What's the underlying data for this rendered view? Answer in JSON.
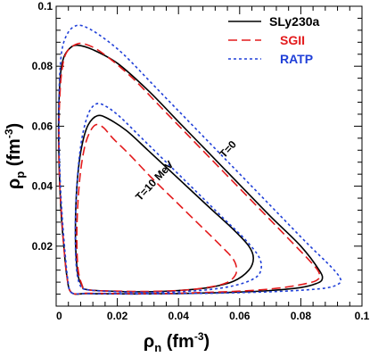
{
  "chart_data": {
    "type": "line",
    "xlabel": "ρ",
    "xlabel_sub": "n",
    "xlabel_unit": " (fm",
    "xlabel_unit_sup": "-3",
    "xlabel_unit_end": ")",
    "ylabel": "ρ",
    "ylabel_sub": "p",
    "ylabel_unit": " (fm",
    "ylabel_unit_sup": "-3",
    "ylabel_unit_end": ")",
    "xlim": [
      0,
      0.1
    ],
    "ylim": [
      0,
      0.1
    ],
    "xticks": [
      0,
      0.02,
      0.04,
      0.06,
      0.08,
      0.1
    ],
    "xtick_labels": [
      "0",
      "0.02",
      "0.04",
      "0.06",
      "0.08",
      "0.1"
    ],
    "yticks": [
      0.02,
      0.04,
      0.06,
      0.08,
      0.1
    ],
    "ytick_labels": [
      "0.02",
      "0.04",
      "0.06",
      "0.08",
      "0.1"
    ],
    "legend_position": "top-right",
    "grid": false,
    "series": [
      {
        "name": "SLy230a",
        "color": "#000000",
        "dash": "solid",
        "curve": "T=0",
        "points": [
          [
            0.005,
            0.0045
          ],
          [
            0.01,
            0.0042
          ],
          [
            0.02,
            0.0041
          ],
          [
            0.03,
            0.0041
          ],
          [
            0.04,
            0.0042
          ],
          [
            0.05,
            0.0044
          ],
          [
            0.06,
            0.0047
          ],
          [
            0.07,
            0.0052
          ],
          [
            0.08,
            0.0062
          ],
          [
            0.085,
            0.0075
          ],
          [
            0.087,
            0.009
          ],
          [
            0.086,
            0.012
          ],
          [
            0.08,
            0.02
          ],
          [
            0.07,
            0.03
          ],
          [
            0.06,
            0.0405
          ],
          [
            0.05,
            0.051
          ],
          [
            0.04,
            0.0615
          ],
          [
            0.03,
            0.072
          ],
          [
            0.02,
            0.081
          ],
          [
            0.012,
            0.0855
          ],
          [
            0.007,
            0.087
          ],
          [
            0.0045,
            0.086
          ],
          [
            0.0025,
            0.083
          ],
          [
            0.0015,
            0.078
          ],
          [
            0.001,
            0.07
          ],
          [
            0.0008,
            0.06
          ],
          [
            0.0009,
            0.05
          ],
          [
            0.0012,
            0.04
          ],
          [
            0.0017,
            0.03
          ],
          [
            0.0025,
            0.02
          ],
          [
            0.0035,
            0.01
          ],
          [
            0.005,
            0.0045
          ]
        ]
      },
      {
        "name": "SGII",
        "color": "#e31a1c",
        "dash": "long-dash",
        "curve": "T=0",
        "points": [
          [
            0.005,
            0.0045
          ],
          [
            0.01,
            0.0043
          ],
          [
            0.02,
            0.0042
          ],
          [
            0.03,
            0.0042
          ],
          [
            0.04,
            0.0043
          ],
          [
            0.05,
            0.0046
          ],
          [
            0.06,
            0.005
          ],
          [
            0.07,
            0.0057
          ],
          [
            0.078,
            0.0068
          ],
          [
            0.085,
            0.0085
          ],
          [
            0.086,
            0.011
          ],
          [
            0.083,
            0.015
          ],
          [
            0.075,
            0.0235
          ],
          [
            0.065,
            0.034
          ],
          [
            0.055,
            0.0445
          ],
          [
            0.045,
            0.055
          ],
          [
            0.035,
            0.0655
          ],
          [
            0.025,
            0.076
          ],
          [
            0.015,
            0.0845
          ],
          [
            0.009,
            0.0875
          ],
          [
            0.0055,
            0.0868
          ],
          [
            0.003,
            0.0838
          ],
          [
            0.0018,
            0.078
          ],
          [
            0.0012,
            0.07
          ],
          [
            0.0009,
            0.06
          ],
          [
            0.0009,
            0.05
          ],
          [
            0.0012,
            0.04
          ],
          [
            0.0018,
            0.03
          ],
          [
            0.0025,
            0.02
          ],
          [
            0.0035,
            0.01
          ],
          [
            0.005,
            0.0045
          ]
        ]
      },
      {
        "name": "RATP",
        "color": "#1f3fd8",
        "dash": "short-dash",
        "curve": "T=0",
        "points": [
          [
            0.005,
            0.0045
          ],
          [
            0.01,
            0.0042
          ],
          [
            0.02,
            0.0041
          ],
          [
            0.03,
            0.0041
          ],
          [
            0.04,
            0.0042
          ],
          [
            0.05,
            0.0043
          ],
          [
            0.06,
            0.0045
          ],
          [
            0.07,
            0.0048
          ],
          [
            0.08,
            0.0053
          ],
          [
            0.088,
            0.006
          ],
          [
            0.092,
            0.0072
          ],
          [
            0.093,
            0.009
          ],
          [
            0.09,
            0.013
          ],
          [
            0.082,
            0.021
          ],
          [
            0.072,
            0.0315
          ],
          [
            0.062,
            0.042
          ],
          [
            0.052,
            0.0525
          ],
          [
            0.042,
            0.063
          ],
          [
            0.032,
            0.0735
          ],
          [
            0.022,
            0.084
          ],
          [
            0.014,
            0.0905
          ],
          [
            0.0085,
            0.0935
          ],
          [
            0.0055,
            0.093
          ],
          [
            0.0035,
            0.0905
          ],
          [
            0.002,
            0.086
          ],
          [
            0.0012,
            0.078
          ],
          [
            0.0009,
            0.068
          ],
          [
            0.0009,
            0.058
          ],
          [
            0.0011,
            0.048
          ],
          [
            0.0015,
            0.038
          ],
          [
            0.0021,
            0.028
          ],
          [
            0.0029,
            0.018
          ],
          [
            0.0038,
            0.009
          ],
          [
            0.005,
            0.0045
          ]
        ]
      },
      {
        "name": "SLy230a",
        "color": "#000000",
        "dash": "solid",
        "curve": "T=10 MeV",
        "points": [
          [
            0.01,
            0.0055
          ],
          [
            0.02,
            0.0049
          ],
          [
            0.03,
            0.0048
          ],
          [
            0.04,
            0.0052
          ],
          [
            0.05,
            0.0062
          ],
          [
            0.058,
            0.0083
          ],
          [
            0.063,
            0.012
          ],
          [
            0.0645,
            0.016
          ],
          [
            0.063,
            0.02
          ],
          [
            0.058,
            0.0255
          ],
          [
            0.05,
            0.033
          ],
          [
            0.04,
            0.0425
          ],
          [
            0.03,
            0.052
          ],
          [
            0.023,
            0.0585
          ],
          [
            0.017,
            0.0625
          ],
          [
            0.0135,
            0.0635
          ],
          [
            0.0105,
            0.0605
          ],
          [
            0.0085,
            0.054
          ],
          [
            0.0072,
            0.045
          ],
          [
            0.0065,
            0.035
          ],
          [
            0.0063,
            0.025
          ],
          [
            0.0065,
            0.017
          ],
          [
            0.0072,
            0.01
          ],
          [
            0.0085,
            0.0068
          ],
          [
            0.01,
            0.0055
          ]
        ]
      },
      {
        "name": "SGII",
        "color": "#e31a1c",
        "dash": "long-dash",
        "curve": "T=10 MeV",
        "points": [
          [
            0.01,
            0.0055
          ],
          [
            0.02,
            0.005
          ],
          [
            0.03,
            0.0049
          ],
          [
            0.04,
            0.0052
          ],
          [
            0.048,
            0.006
          ],
          [
            0.055,
            0.0075
          ],
          [
            0.058,
            0.0095
          ],
          [
            0.059,
            0.012
          ],
          [
            0.058,
            0.0155
          ],
          [
            0.054,
            0.02
          ],
          [
            0.047,
            0.027
          ],
          [
            0.039,
            0.035
          ],
          [
            0.031,
            0.043
          ],
          [
            0.024,
            0.0505
          ],
          [
            0.0185,
            0.056
          ],
          [
            0.0155,
            0.0595
          ],
          [
            0.013,
            0.0605
          ],
          [
            0.011,
            0.058
          ],
          [
            0.0093,
            0.053
          ],
          [
            0.008,
            0.045
          ],
          [
            0.0072,
            0.036
          ],
          [
            0.0068,
            0.027
          ],
          [
            0.0068,
            0.019
          ],
          [
            0.0072,
            0.012
          ],
          [
            0.0083,
            0.0075
          ],
          [
            0.01,
            0.0055
          ]
        ]
      },
      {
        "name": "RATP",
        "color": "#1f3fd8",
        "dash": "short-dash",
        "curve": "T=10 MeV",
        "points": [
          [
            0.01,
            0.0055
          ],
          [
            0.02,
            0.0048
          ],
          [
            0.03,
            0.0046
          ],
          [
            0.04,
            0.0048
          ],
          [
            0.05,
            0.0055
          ],
          [
            0.058,
            0.0068
          ],
          [
            0.064,
            0.0088
          ],
          [
            0.0668,
            0.0115
          ],
          [
            0.0665,
            0.016
          ],
          [
            0.062,
            0.022
          ],
          [
            0.055,
            0.029
          ],
          [
            0.046,
            0.038
          ],
          [
            0.037,
            0.047
          ],
          [
            0.028,
            0.056
          ],
          [
            0.021,
            0.063
          ],
          [
            0.0165,
            0.0665
          ],
          [
            0.0133,
            0.0675
          ],
          [
            0.0108,
            0.0648
          ],
          [
            0.0088,
            0.058
          ],
          [
            0.0075,
            0.049
          ],
          [
            0.0067,
            0.039
          ],
          [
            0.0063,
            0.029
          ],
          [
            0.0063,
            0.02
          ],
          [
            0.0067,
            0.012
          ],
          [
            0.0078,
            0.007
          ],
          [
            0.01,
            0.0055
          ]
        ]
      }
    ],
    "legend": [
      {
        "label": "SLy230a",
        "color": "#000000",
        "dash": "solid"
      },
      {
        "label": "SGII",
        "color": "#e31a1c",
        "dash": "long-dash"
      },
      {
        "label": "RATP",
        "color": "#1f3fd8",
        "dash": "short-dash"
      }
    ],
    "annotations": [
      {
        "text": "T=0",
        "x": 0.057,
        "y": 0.0515,
        "angle": -47
      },
      {
        "text": "T=10 MeV",
        "x": 0.033,
        "y": 0.041,
        "angle": -47
      }
    ]
  }
}
